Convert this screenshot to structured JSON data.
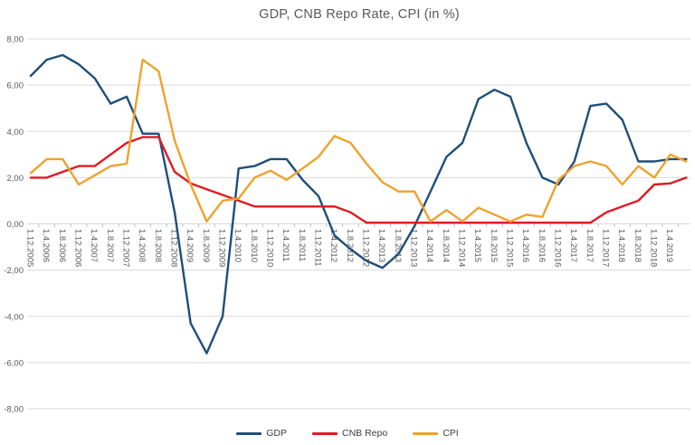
{
  "title": "GDP, CNB Repo Rate, CPI (in %)",
  "colors": {
    "grid": "#d9d9d9",
    "axis_tick": "#bfbfbf",
    "axis_text": "#595959",
    "title_text": "#595959",
    "gdp_blue": "#1f4e79",
    "repo_red": "#e01a22",
    "cpi_orange": "#f0a22c"
  },
  "chart_data": {
    "type": "line",
    "title": "GDP, CNB Repo Rate, CPI (in %)",
    "grid": true,
    "legend_position": "bottom",
    "ylim": [
      -8,
      8
    ],
    "y_ticks": [
      {
        "value": 8,
        "label": "8,00"
      },
      {
        "value": 6,
        "label": "6,00"
      },
      {
        "value": 4,
        "label": "4,00"
      },
      {
        "value": 2,
        "label": "2,00"
      },
      {
        "value": 0,
        "label": "0,00"
      },
      {
        "value": -2,
        "label": "-2,00"
      },
      {
        "value": -4,
        "label": "-4,00"
      },
      {
        "value": -6,
        "label": "-6,00"
      },
      {
        "value": -8,
        "label": "-8,00"
      }
    ],
    "x_labels": [
      "1.12.2005",
      "1.4.2006",
      "1.8.2006",
      "1.12.2006",
      "1.4.2007",
      "1.8.2007",
      "1.12.2007",
      "1.4.2008",
      "1.8.2008",
      "1.12.2008",
      "1.4.2009",
      "1.8.2009",
      "1.12.2009",
      "1.4.2010",
      "1.8.2010",
      "1.12.2010",
      "1.4.2011",
      "1.8.2011",
      "1.12.2011",
      "1.4.2012",
      "1.8.2012",
      "1.12.2012",
      "1.4.2013",
      "1.8.2013",
      "1.12.2013",
      "1.4.2014",
      "1.8.2014",
      "1.12.2014",
      "1.4.2015",
      "1.8.2015",
      "1.12.2015",
      "1.4.2016",
      "1.8.2016",
      "1.12.2016",
      "1.4.2017",
      "1.8.2017",
      "1.12.2017",
      "1.4.2018",
      "1.8.2018",
      "1.12.2018",
      "1.4.2019",
      ""
    ],
    "series": [
      {
        "name": "GDP",
        "color": "#1f4e79",
        "values": [
          6.4,
          7.1,
          7.3,
          6.9,
          6.3,
          5.2,
          5.5,
          3.9,
          3.9,
          0.5,
          -4.3,
          -5.6,
          -4.0,
          2.4,
          2.5,
          2.8,
          2.8,
          1.9,
          1.2,
          -0.5,
          -1.1,
          -1.6,
          -1.9,
          -1.3,
          -0.1,
          1.4,
          2.9,
          3.5,
          5.4,
          5.8,
          5.5,
          3.5,
          2.0,
          1.7,
          2.7,
          5.1,
          5.2,
          4.5,
          2.7,
          2.7,
          2.8,
          2.8
        ]
      },
      {
        "name": "CNB Repo",
        "color": "#e01a22",
        "values": [
          2.0,
          2.0,
          2.25,
          2.5,
          2.5,
          3.0,
          3.5,
          3.75,
          3.75,
          2.25,
          1.75,
          1.5,
          1.25,
          1.0,
          0.75,
          0.75,
          0.75,
          0.75,
          0.75,
          0.75,
          0.5,
          0.05,
          0.05,
          0.05,
          0.05,
          0.05,
          0.05,
          0.05,
          0.05,
          0.05,
          0.05,
          0.05,
          0.05,
          0.05,
          0.05,
          0.05,
          0.5,
          0.75,
          1.0,
          1.7,
          1.75,
          2.0
        ]
      },
      {
        "name": "CPI",
        "color": "#f0a22c",
        "values": [
          2.2,
          2.8,
          2.8,
          1.7,
          2.1,
          2.5,
          2.6,
          7.1,
          6.6,
          3.6,
          1.7,
          0.1,
          1.0,
          1.1,
          2.0,
          2.3,
          1.9,
          2.4,
          2.9,
          3.8,
          3.5,
          2.6,
          1.8,
          1.4,
          1.4,
          0.1,
          0.6,
          0.1,
          0.7,
          0.4,
          0.1,
          0.4,
          0.3,
          1.9,
          2.5,
          2.7,
          2.5,
          1.7,
          2.5,
          2.0,
          3.0,
          2.7
        ]
      }
    ]
  }
}
